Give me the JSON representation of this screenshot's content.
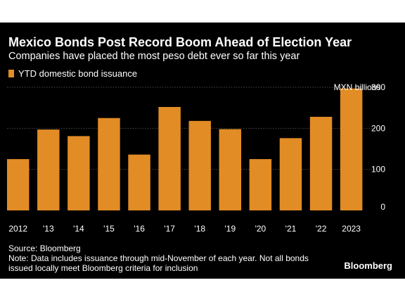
{
  "title": "Mexico Bonds Post Record Boom Ahead of Election Year",
  "subtitle": "Companies have placed the most peso debt ever so far this year",
  "source": "Source: Bloomberg",
  "note_line1": "Note: Data includes issuance through mid-November of each year. Not all bonds",
  "note_line2": "issued locally meet Bloomberg criteria for inclusion",
  "brand": "Bloomberg",
  "colors": {
    "background": "#000000",
    "bar": "#E28C25",
    "text": "#ffffff",
    "grid": "#4a4a4a"
  },
  "chart_data": {
    "type": "bar",
    "title": "Mexico Bonds Post Record Boom Ahead of Election Year",
    "categories": [
      "2012",
      "'13",
      "'14",
      "'15",
      "'16",
      "'17",
      "'18",
      "'19",
      "'20",
      "'21",
      "'22",
      "2023"
    ],
    "series": [
      {
        "name": "YTD domestic bond issuance",
        "values": [
          125,
          197,
          181,
          225,
          136,
          252,
          218,
          198,
          125,
          176,
          228,
          297
        ]
      }
    ],
    "ylabel": "MXN billions",
    "ylim": [
      0,
      300
    ],
    "yticks": [
      0,
      100,
      200,
      300
    ],
    "grid": true,
    "legend": "top-left"
  }
}
